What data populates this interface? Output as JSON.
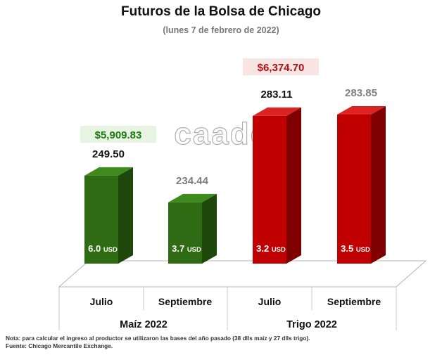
{
  "title": "Futuros de la Bolsa de Chicago",
  "subtitle": "(lunes 7 de febrero de 2022)",
  "watermark": "caades",
  "chart_data": {
    "type": "bar",
    "style": "3d",
    "groups": [
      {
        "name": "Maíz 2022",
        "categories": [
          "Julio",
          "Septiembre"
        ]
      },
      {
        "name": "Trigo 2022",
        "categories": [
          "Julio",
          "Septiembre"
        ]
      }
    ],
    "bars": [
      {
        "group": "Maíz 2022",
        "category": "Julio",
        "value": 249.5,
        "value_label": "249.50",
        "change": "6.0",
        "change_unit": "USD",
        "color": "#2e6b12",
        "side_color": "#1d470b",
        "top_color": "#3e8a1c",
        "value_label_color": "#111111"
      },
      {
        "group": "Maíz 2022",
        "category": "Septiembre",
        "value": 234.44,
        "value_label": "234.44",
        "change": "3.7",
        "change_unit": "USD",
        "color": "#2e6b12",
        "side_color": "#1d470b",
        "top_color": "#3e8a1c",
        "value_label_color": "#7f7f7f"
      },
      {
        "group": "Trigo 2022",
        "category": "Julio",
        "value": 283.11,
        "value_label": "283.11",
        "change": "3.2",
        "change_unit": "USD",
        "color": "#c00000",
        "side_color": "#7e0000",
        "top_color": "#dd2222",
        "value_label_color": "#111111"
      },
      {
        "group": "Trigo 2022",
        "category": "Septiembre",
        "value": 283.85,
        "value_label": "283.85",
        "change": "3.5",
        "change_unit": "USD",
        "color": "#c00000",
        "side_color": "#7e0000",
        "top_color": "#dd2222",
        "value_label_color": "#7f7f7f"
      }
    ],
    "callouts": [
      {
        "group": "Maíz 2022",
        "text": "$5,909.83",
        "color": "#1e7a12",
        "background": "#e6f4e1"
      },
      {
        "group": "Trigo 2022",
        "text": "$6,374.70",
        "color": "#b01010",
        "background": "#f9e4e4"
      }
    ],
    "grid": false,
    "legend": "none"
  },
  "notes": [
    "Nota: para calcular el ingreso al productor se utilizaron las bases del año pasado (38 dlls maíz y 27 dlls trigo).",
    "Fuente: Chicago Mercantile Exchange."
  ]
}
